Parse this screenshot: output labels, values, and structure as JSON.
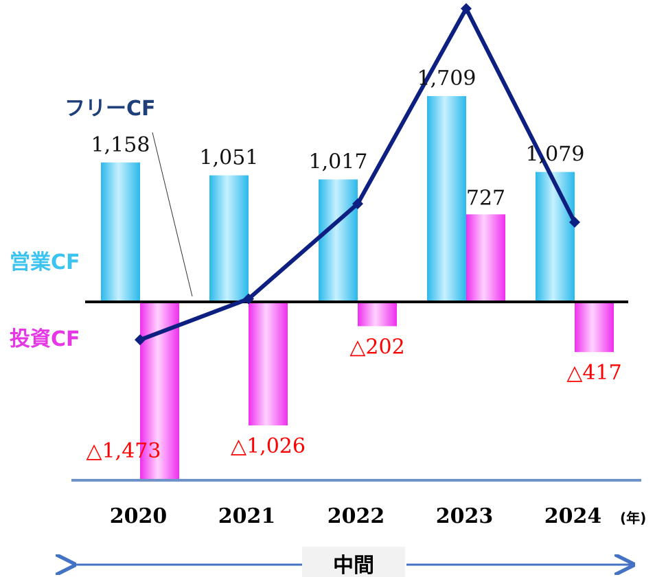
{
  "chart_data": {
    "type": "bar",
    "categories": [
      "2020",
      "2021",
      "2022",
      "2023",
      "2024"
    ],
    "x_unit": "(年)",
    "series": [
      {
        "name": "営業CF",
        "kind": "bar",
        "values": [
          1158,
          1051,
          1017,
          1709,
          1079
        ],
        "labels": [
          "1,158",
          "1,051",
          "1,017",
          "1,709",
          "1,079"
        ],
        "color": "#39c4ee"
      },
      {
        "name": "投資CF",
        "kind": "bar",
        "values": [
          -1473,
          -1026,
          -202,
          727,
          -417
        ],
        "labels": [
          "△1,473",
          "△1,026",
          "△202",
          "727",
          "△417"
        ],
        "color": "#f03cef"
      },
      {
        "name": "フリーCF",
        "kind": "line",
        "values": [
          -315,
          25,
          815,
          2436,
          662
        ],
        "color": "#0d1f80"
      }
    ],
    "label_colors": {
      "positive": "#111111",
      "negative": "#ff0000"
    },
    "legend_colors": {
      "operating": "#3dc3ef",
      "investing": "#e637e6",
      "free": "#1f3f7a"
    },
    "period_label": "中間",
    "grid": false
  }
}
